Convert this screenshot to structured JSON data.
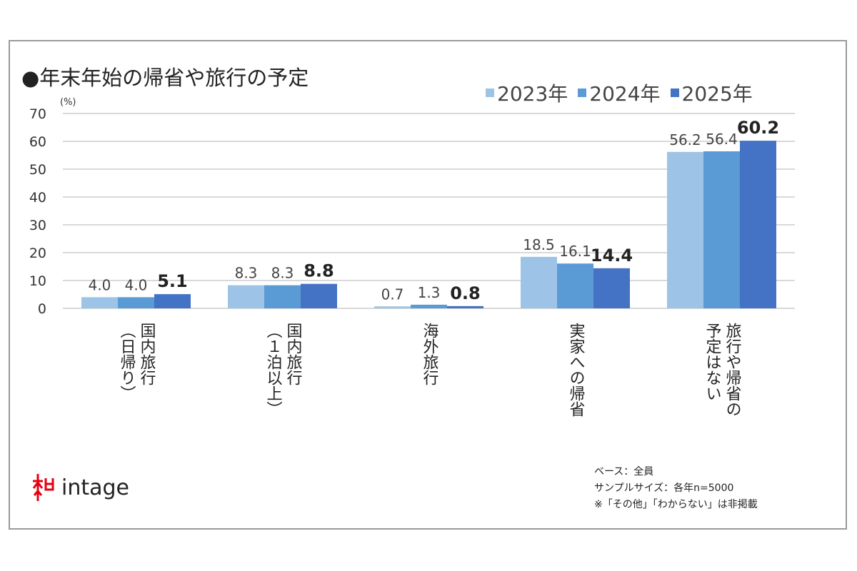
{
  "chart_data": {
    "type": "bar",
    "title": "●年末年始の帰省や旅行の予定",
    "ylabel": "(%)",
    "xlabel": "",
    "ylim": [
      0,
      70
    ],
    "yticks": [
      0,
      10,
      20,
      30,
      40,
      50,
      60,
      70
    ],
    "grid": true,
    "legend_position": "top-right",
    "categories": [
      [
        "国内旅行",
        "（日帰り）"
      ],
      [
        "国内旅行",
        "（１泊以上）"
      ],
      [
        "海外旅行"
      ],
      [
        "実家への帰省"
      ],
      [
        "旅行や帰省の",
        "予定はない"
      ]
    ],
    "series": [
      {
        "name": "2023年",
        "color": "#9dc3e6",
        "values": [
          4.0,
          8.3,
          0.7,
          18.5,
          56.2
        ],
        "labels": [
          "4.0",
          "8.3",
          "0.7",
          "18.5",
          "56.2"
        ]
      },
      {
        "name": "2024年",
        "color": "#5b9bd5",
        "values": [
          4.0,
          8.3,
          1.3,
          16.1,
          56.4
        ],
        "labels": [
          "4.0",
          "8.3",
          "1.3",
          "16.1",
          "56.4"
        ]
      },
      {
        "name": "2025年",
        "color": "#4472c4",
        "values": [
          5.1,
          8.8,
          0.8,
          14.4,
          60.2
        ],
        "labels": [
          "5.1",
          "8.8",
          "0.8",
          "14.4",
          "60.2"
        ]
      }
    ]
  },
  "notes": [
    "ベース：全員",
    "サンプルサイズ：各年n=5000",
    "※「その他」「わからない」は非掲載"
  ],
  "logo": {
    "text": "intage",
    "color": "#e60012"
  }
}
